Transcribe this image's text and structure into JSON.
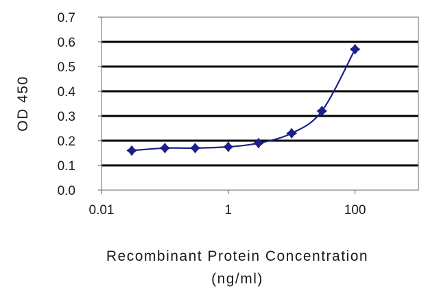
{
  "chart_data": {
    "type": "scatter",
    "xlabel": "Recombinant Protein Concentration",
    "xlabel_unit": "(ng/ml)",
    "ylabel": "OD 450",
    "x_scale": "log",
    "xlim": [
      0.01,
      1000
    ],
    "ylim": [
      0.0,
      0.7
    ],
    "x_ticks": [
      0.01,
      1,
      100
    ],
    "x_tick_labels": [
      "0.01",
      "1",
      "100"
    ],
    "y_ticks": [
      0.0,
      0.1,
      0.2,
      0.3,
      0.4,
      0.5,
      0.6,
      0.7
    ],
    "y_tick_labels": [
      "0.0",
      "0.1",
      "0.2",
      "0.3",
      "0.4",
      "0.5",
      "0.6",
      "0.7"
    ],
    "grid": "horizontal",
    "series": [
      {
        "x": [
          0.03,
          0.1,
          0.3,
          1,
          3,
          10,
          30,
          100
        ],
        "y": [
          0.16,
          0.17,
          0.17,
          0.175,
          0.19,
          0.23,
          0.32,
          0.57
        ],
        "color": "#1a1f8c",
        "marker": "diamond",
        "line": "smooth"
      }
    ]
  }
}
